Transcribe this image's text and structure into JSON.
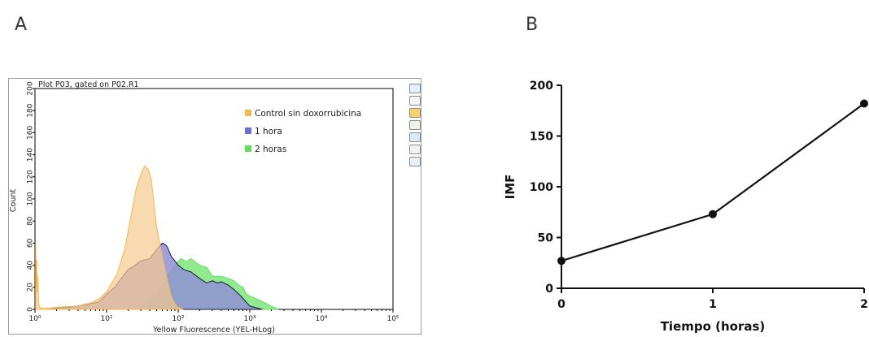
{
  "panels": {
    "a_label": "A",
    "b_label": "B"
  },
  "colors": {
    "control": "#f5b84a",
    "control_fill": "#f7c98e",
    "one_hour": "#6b6fd6",
    "one_hour_fill": "#8f90d6",
    "two_hours": "#5fe05a",
    "two_hours_fill": "#7ee87a",
    "line": "#111111"
  },
  "toolbar": {
    "icons": [
      "magnifier-icon",
      "copy-icon",
      "color-palette-icon",
      "export-icon",
      "save-icon",
      "print-icon",
      "zoom-icon"
    ]
  },
  "chart_data": [
    {
      "type": "area",
      "title": "Plot P03, gated on P02.R1",
      "xlabel": "Yellow Fluorescence (YEL-HLog)",
      "ylabel": "Count",
      "x_scale": "log",
      "xlim": [
        1,
        100000
      ],
      "ylim": [
        0,
        200
      ],
      "x_tick_labels": [
        "10⁰",
        "10¹",
        "10²",
        "10³",
        "10⁴",
        "10⁵"
      ],
      "y_tick_labels": [
        "0",
        "20",
        "40",
        "60",
        "80",
        "100",
        "120",
        "140",
        "160",
        "180",
        "200"
      ],
      "legend_position": "top-right",
      "legend": [
        "Control sin doxorrubicina",
        "1 hora",
        "2 horas"
      ],
      "series": [
        {
          "name": "Control sin doxorrubicina",
          "x": [
            1.02,
            1.04,
            1.06,
            1.08,
            1.1,
            1.12,
            1.15,
            1.2,
            1.5,
            2,
            4,
            6,
            8,
            10,
            14,
            18,
            22,
            26,
            30,
            34,
            38,
            42,
            46,
            50,
            55,
            60,
            65,
            70,
            75,
            80,
            90,
            100,
            110,
            115
          ],
          "y": [
            60,
            20,
            45,
            15,
            30,
            8,
            3,
            1,
            1,
            2,
            3,
            6,
            10,
            16,
            32,
            55,
            85,
            110,
            122,
            130,
            127,
            118,
            96,
            75,
            60,
            48,
            38,
            28,
            20,
            12,
            5,
            2,
            1,
            0
          ]
        },
        {
          "name": "1 hora",
          "x": [
            1.5,
            2,
            3,
            5,
            8,
            10,
            13,
            16,
            20,
            25,
            30,
            35,
            40,
            50,
            60,
            65,
            70,
            80,
            90,
            100,
            120,
            150,
            200,
            250,
            300,
            350,
            400,
            500,
            600,
            700,
            800,
            1000,
            1500
          ],
          "y": [
            0,
            1,
            2,
            4,
            7,
            14,
            20,
            28,
            36,
            40,
            44,
            45,
            46,
            54,
            60,
            59,
            57,
            48,
            44,
            40,
            36,
            34,
            28,
            24,
            26,
            24,
            25,
            22,
            18,
            14,
            10,
            3,
            0
          ]
        },
        {
          "name": "2 horas",
          "x": [
            30,
            50,
            70,
            90,
            110,
            130,
            150,
            200,
            250,
            300,
            400,
            500,
            600,
            700,
            800,
            900,
            1000,
            1200,
            1500,
            2000,
            2500
          ],
          "y": [
            2,
            12,
            30,
            40,
            46,
            43,
            46,
            40,
            38,
            30,
            30,
            28,
            26,
            22,
            20,
            14,
            12,
            10,
            7,
            3,
            0
          ]
        }
      ]
    },
    {
      "type": "line",
      "xlabel": "Tiempo (horas)",
      "ylabel": "IMF",
      "xlim": [
        0,
        2
      ],
      "ylim": [
        0,
        200
      ],
      "x_ticks": [
        0,
        1,
        2
      ],
      "y_ticks": [
        0,
        50,
        100,
        150,
        200
      ],
      "grid": false,
      "x": [
        0,
        1,
        2
      ],
      "y": [
        27,
        73,
        182
      ]
    }
  ]
}
